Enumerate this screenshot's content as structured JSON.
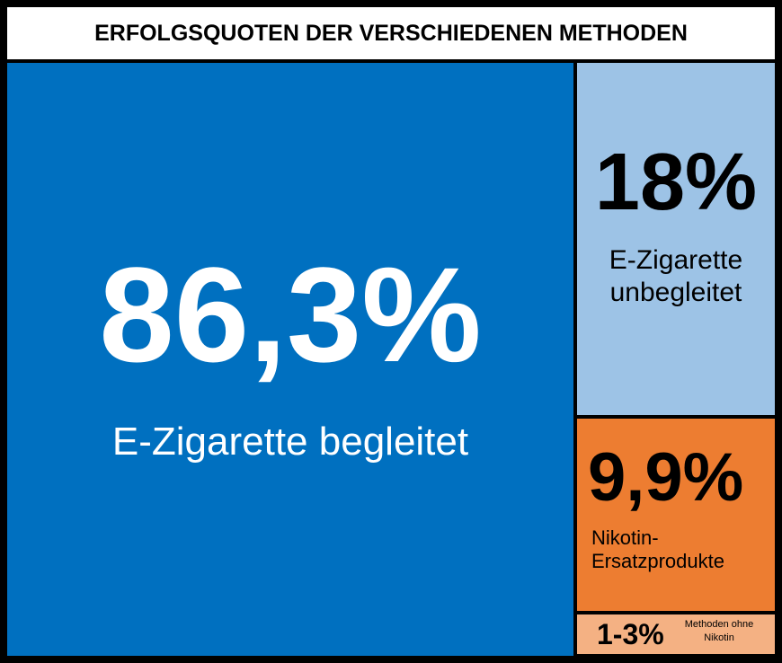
{
  "header": {
    "title": "ERFOLGSQUOTEN DER VERSCHIEDENEN METHODEN"
  },
  "tiles": [
    {
      "value": "86,3%",
      "label": "E-Zigarette begleitet"
    },
    {
      "value": "18%",
      "label": "E-Zigarette unbegleitet"
    },
    {
      "value": "9,9%",
      "label": "Nikotin-Ersatzprodukte"
    },
    {
      "value": "1-3%",
      "label": "Methoden ohne Nikotin"
    }
  ]
}
